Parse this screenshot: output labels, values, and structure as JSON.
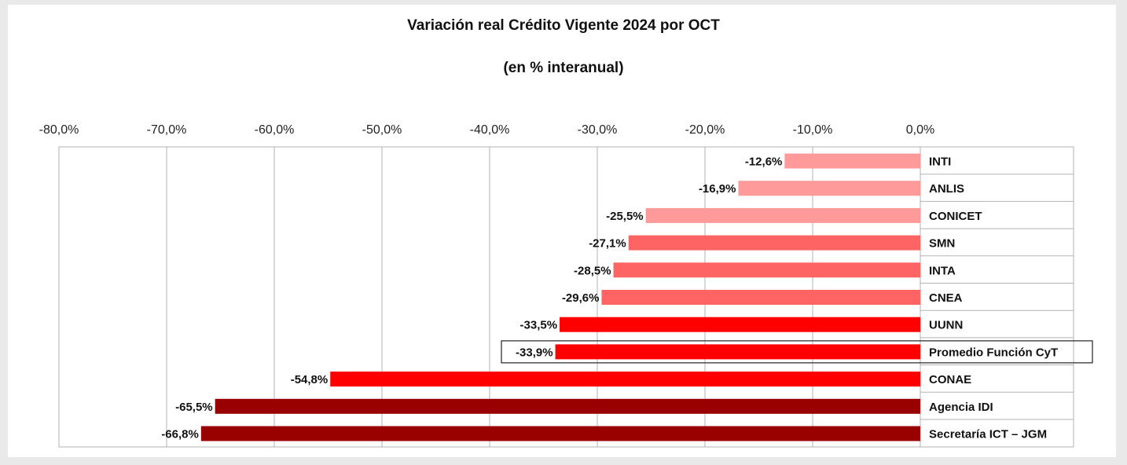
{
  "chart_data": {
    "type": "bar",
    "orientation": "horizontal",
    "title": "Variación real Crédito Vigente 2024 por OCT",
    "subtitle": "(en % interanual)",
    "xlim": [
      -80,
      0
    ],
    "x_ticks": [
      "-80,0%",
      "-70,0%",
      "-60,0%",
      "-50,0%",
      "-40,0%",
      "-30,0%",
      "-20,0%",
      "-10,0%",
      "0,0%"
    ],
    "x_tick_values": [
      -80,
      -70,
      -60,
      -50,
      -40,
      -30,
      -20,
      -10,
      0
    ],
    "grid": true,
    "categories": [
      "INTI",
      "ANLIS",
      "CONICET",
      "SMN",
      "INTA",
      "CNEA",
      "UUNN",
      "Promedio Función CyT",
      "CONAE",
      "Agencia IDI",
      "Secretaría ICT – JGM"
    ],
    "values": [
      -12.6,
      -16.9,
      -25.5,
      -27.1,
      -28.5,
      -29.6,
      -33.5,
      -33.9,
      -54.8,
      -65.5,
      -66.8
    ],
    "value_labels": [
      "-12,6%",
      "-16,9%",
      "-25,5%",
      "-27,1%",
      "-28,5%",
      "-29,6%",
      "-33,5%",
      "-33,9%",
      "-54,8%",
      "-65,5%",
      "-66,8%"
    ],
    "colors": [
      "#ff9a9a",
      "#ff9a9a",
      "#ff9a9a",
      "#ff6464",
      "#ff6464",
      "#ff6464",
      "#ff0000",
      "#ff0000",
      "#ff0000",
      "#990000",
      "#990000"
    ],
    "highlighted_category": "Promedio Función CyT"
  }
}
